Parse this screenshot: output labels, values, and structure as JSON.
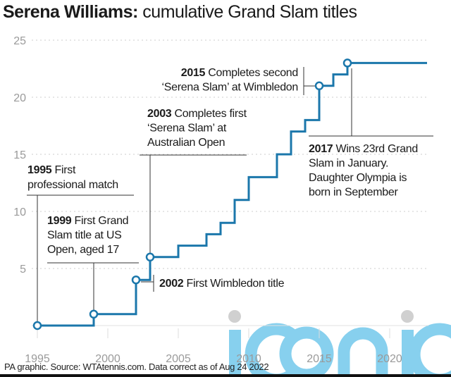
{
  "title": {
    "bold": "Serena Williams:",
    "rest": " cumulative Grand Slam titles"
  },
  "source": "PA graphic. Source: WTAtennis.com. Data correct as of Aug 24 2022",
  "watermark": "iconic",
  "colors": {
    "line": "#1b77ab",
    "grid": "#cccccc",
    "axis_text": "#9a9a9a",
    "annotation": "#1a1a1a",
    "watermark": "#87d0ee"
  },
  "chart_data": {
    "type": "line",
    "step": "step-after",
    "title": "Serena Williams: cumulative Grand Slam titles",
    "xlabel": "",
    "ylabel": "",
    "xlim": [
      1995,
      2022.65
    ],
    "ylim": [
      0,
      25
    ],
    "grid": true,
    "x_ticks": [
      1995,
      2000,
      2005,
      2010,
      2015,
      2020
    ],
    "y_ticks": [
      5,
      10,
      15,
      20,
      25
    ],
    "x": [
      1995,
      1999,
      2002,
      2003,
      2005,
      2007,
      2008,
      2009,
      2010,
      2012,
      2013,
      2014,
      2015,
      2016,
      2017,
      2022.65
    ],
    "y": [
      0,
      1,
      4,
      6,
      7,
      8,
      9,
      11,
      13,
      15,
      17,
      18,
      21,
      22,
      23,
      23
    ],
    "markers": [
      {
        "x": 1995,
        "y": 0
      },
      {
        "x": 1999,
        "y": 1
      },
      {
        "x": 2002,
        "y": 4
      },
      {
        "x": 2003,
        "y": 6
      },
      {
        "x": 2015,
        "y": 21
      },
      {
        "x": 2017,
        "y": 23
      }
    ],
    "annotations": [
      {
        "year": "1995",
        "lines": [
          "First",
          "professional match"
        ]
      },
      {
        "year": "1999",
        "lines": [
          "First Grand",
          "Slam title at US",
          "Open, aged 17"
        ]
      },
      {
        "year": "2002",
        "lines": [
          "First Wimbledon title"
        ]
      },
      {
        "year": "2003",
        "lines": [
          "Completes first",
          "‘Serena Slam’ at",
          "Australian Open"
        ]
      },
      {
        "year": "2015",
        "lines": [
          "Completes second",
          "‘Serena Slam’ at Wimbledon"
        ]
      },
      {
        "year": "2017",
        "lines": [
          "Wins 23rd Grand",
          "Slam in January.",
          "Daughter Olympia is",
          "born in September"
        ]
      }
    ]
  }
}
